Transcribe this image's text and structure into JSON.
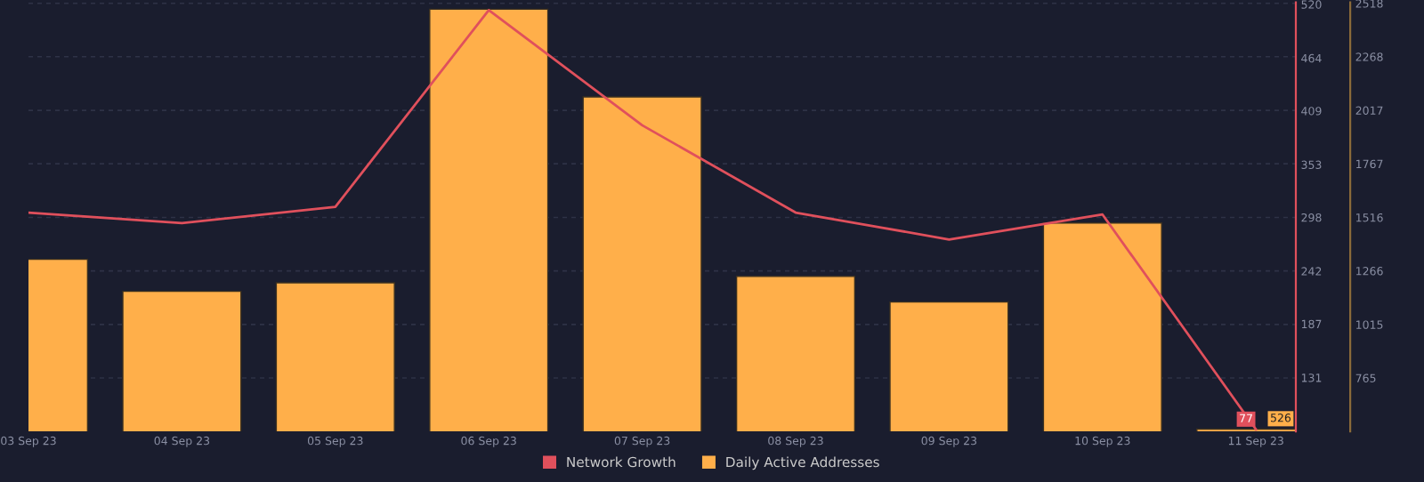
{
  "chart_data": {
    "type": "bar",
    "categories": [
      "03 Sep 23",
      "04 Sep 23",
      "05 Sep 23",
      "06 Sep 23",
      "07 Sep 23",
      "08 Sep 23",
      "09 Sep 23",
      "10 Sep 23",
      "11 Sep 23"
    ],
    "series": [
      {
        "name": "Network Growth",
        "type": "line",
        "color": "#e0505c",
        "values": [
          303,
          292,
          309,
          514,
          394,
          303,
          275,
          301,
          77
        ],
        "value_labels": [
          null,
          null,
          null,
          null,
          null,
          null,
          null,
          null,
          "77"
        ]
      },
      {
        "name": "Daily Active Addresses",
        "axis": "y2",
        "color": "#ffaf4a",
        "values": [
          1320,
          1170,
          1210,
          2490,
          2080,
          1240,
          1120,
          1490,
          526
        ],
        "value_labels": [
          null,
          null,
          null,
          null,
          null,
          null,
          null,
          null,
          "526"
        ]
      }
    ],
    "ylim": [
      75,
      522
    ],
    "yticks": [
      131,
      187,
      242,
      298,
      353,
      409,
      464,
      520
    ],
    "y2lim": [
      515,
      2522
    ],
    "y2ticks": [
      765,
      1015,
      1266,
      1516,
      1767,
      2017,
      2268,
      2518
    ],
    "grid": true,
    "legend": "bottom",
    "marker": "none",
    "line_style": "solid"
  }
}
